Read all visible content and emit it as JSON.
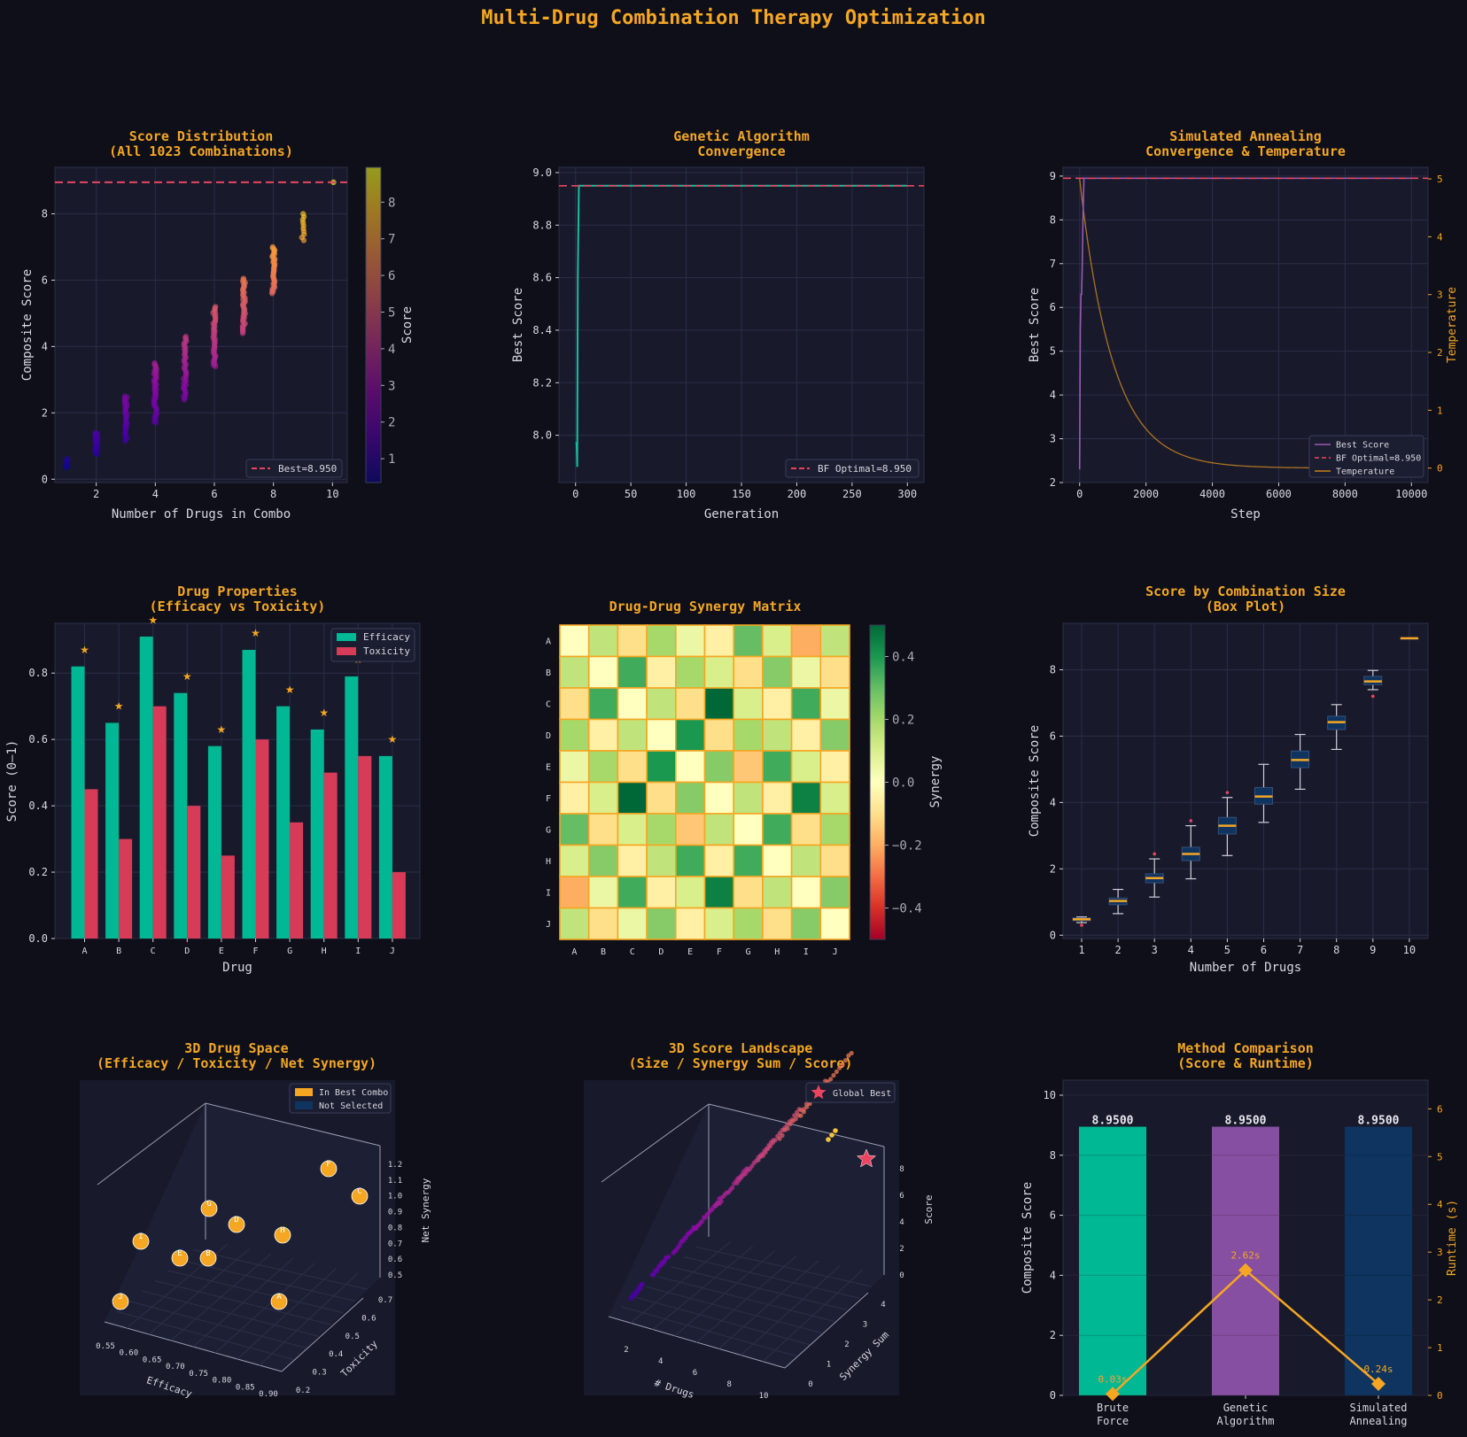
{
  "suptitle": "Multi-Drug Combination Therapy Optimization",
  "colors": {
    "background": "#0e0f18",
    "panel": "#181a2c",
    "accent": "#f5a623",
    "efficacy": "#00b894",
    "toxicity": "#d63b57",
    "ga": "#1abc9c",
    "sa": "#9b59b6",
    "navy": "#0f3460",
    "ref_line": "#e94560"
  },
  "chart_data": [
    {
      "id": "score_distribution",
      "type": "scatter",
      "title": "Score Distribution",
      "subtitle": "(All 1023 Combinations)",
      "xlabel": "Number of Drugs in Combo",
      "ylabel": "Composite Score",
      "xlim": [
        0.6,
        10.5
      ],
      "ylim": [
        -0.1,
        9.4
      ],
      "xticks": [
        2,
        4,
        6,
        8,
        10
      ],
      "yticks": [
        0,
        2,
        4,
        6,
        8
      ],
      "colorbar": {
        "label": "Score",
        "ticks": [
          1,
          2,
          3,
          4,
          5,
          6,
          7,
          8
        ],
        "range": [
          0.35,
          8.95
        ],
        "colormap": "plasma"
      },
      "reference_line": {
        "y": 8.95,
        "label": "Best=8.950"
      },
      "legend_position": "lower-right",
      "clusters": [
        {
          "x": 1,
          "count": 10,
          "min": 0.35,
          "max": 0.62
        },
        {
          "x": 2,
          "count": 45,
          "min": 0.75,
          "max": 1.4
        },
        {
          "x": 3,
          "count": 120,
          "min": 1.15,
          "max": 2.5
        },
        {
          "x": 4,
          "count": 210,
          "min": 1.7,
          "max": 3.5
        },
        {
          "x": 5,
          "count": 252,
          "min": 2.4,
          "max": 4.3
        },
        {
          "x": 6,
          "count": 210,
          "min": 3.4,
          "max": 5.2
        },
        {
          "x": 7,
          "count": 120,
          "min": 4.4,
          "max": 6.05
        },
        {
          "x": 8,
          "count": 45,
          "min": 5.6,
          "max": 7.0
        },
        {
          "x": 9,
          "count": 10,
          "min": 7.2,
          "max": 8.0
        },
        {
          "x": 10,
          "count": 1,
          "min": 8.95,
          "max": 8.95
        }
      ]
    },
    {
      "id": "ga_convergence",
      "type": "line",
      "title": "Genetic Algorithm",
      "subtitle": "Convergence",
      "xlabel": "Generation",
      "ylabel": "Best Score",
      "xlim": [
        -15,
        315
      ],
      "ylim": [
        7.82,
        9.02
      ],
      "xticks": [
        0,
        50,
        100,
        150,
        200,
        250,
        300
      ],
      "yticks": [
        8.0,
        8.2,
        8.4,
        8.6,
        8.8,
        9.0
      ],
      "reference_line": {
        "y": 8.95,
        "label": "BF Optimal=8.950"
      },
      "legend_position": "lower-right",
      "series": [
        {
          "x": [
            0,
            1,
            1.5,
            2,
            3,
            300
          ],
          "y": [
            7.97,
            7.97,
            7.88,
            8.6,
            8.95,
            8.95
          ]
        }
      ]
    },
    {
      "id": "sa_convergence",
      "type": "line",
      "title": "Simulated Annealing",
      "subtitle": "Convergence & Temperature",
      "xlabel": "Step",
      "ylabel": "Best Score",
      "y2label": "Temperature",
      "xlim": [
        -500,
        10500
      ],
      "ylim": [
        2.0,
        9.2
      ],
      "y2lim": [
        -0.25,
        5.2
      ],
      "xticks": [
        0,
        2000,
        4000,
        6000,
        8000,
        10000
      ],
      "yticks": [
        2,
        3,
        4,
        5,
        6,
        7,
        8,
        9
      ],
      "y2ticks": [
        0,
        1,
        2,
        3,
        4,
        5
      ],
      "legend_position": "lower-right",
      "series": [
        {
          "name": "Best Score",
          "x": [
            0,
            20,
            40,
            60,
            80,
            100,
            130,
            10000
          ],
          "y": [
            2.3,
            5.5,
            6.3,
            6.3,
            7.0,
            8.0,
            8.95,
            8.95
          ]
        },
        {
          "name": "BF Optimal=8.950",
          "y": 8.95
        },
        {
          "name": "Temperature",
          "start": 5.0,
          "end": 0.0,
          "decay_steps": 1000
        }
      ]
    },
    {
      "id": "drug_properties",
      "type": "bar",
      "title": "Drug Properties",
      "subtitle": "(Efficacy vs Toxicity)",
      "xlabel": "Drug",
      "ylabel": "Score (0–1)",
      "ylim": [
        0,
        0.95
      ],
      "yticks": [
        0.0,
        0.2,
        0.4,
        0.6,
        0.8
      ],
      "categories": [
        "A",
        "B",
        "C",
        "D",
        "E",
        "F",
        "G",
        "H",
        "I",
        "J"
      ],
      "legend_position": "top-right",
      "series": [
        {
          "name": "Efficacy",
          "values": [
            0.82,
            0.65,
            0.91,
            0.74,
            0.58,
            0.87,
            0.7,
            0.63,
            0.79,
            0.55
          ]
        },
        {
          "name": "Toxicity",
          "values": [
            0.45,
            0.3,
            0.7,
            0.4,
            0.25,
            0.6,
            0.35,
            0.5,
            0.55,
            0.2
          ]
        }
      ],
      "selected_markers": [
        0.87,
        0.7,
        0.96,
        0.79,
        0.63,
        0.92,
        0.75,
        0.68,
        0.84,
        0.6
      ]
    },
    {
      "id": "synergy_matrix",
      "type": "heatmap",
      "title": "Drug-Drug Synergy Matrix",
      "rows": [
        "A",
        "B",
        "C",
        "D",
        "E",
        "F",
        "G",
        "H",
        "I",
        "J"
      ],
      "cols": [
        "A",
        "B",
        "C",
        "D",
        "E",
        "F",
        "G",
        "H",
        "I",
        "J"
      ],
      "colorbar": {
        "label": "Synergy",
        "ticks": [
          0.4,
          0.2,
          0.0,
          -0.2,
          -0.4
        ],
        "range": [
          -0.5,
          0.5
        ],
        "colormap": "RdYlGn"
      },
      "values": [
        [
          0.0,
          0.15,
          -0.1,
          0.2,
          0.05,
          -0.05,
          0.3,
          0.1,
          -0.2,
          0.15
        ],
        [
          0.15,
          0.0,
          0.35,
          -0.05,
          0.2,
          0.1,
          -0.1,
          0.25,
          0.05,
          -0.1
        ],
        [
          -0.1,
          0.35,
          0.0,
          0.15,
          -0.1,
          0.5,
          0.1,
          -0.05,
          0.35,
          0.05
        ],
        [
          0.2,
          -0.05,
          0.15,
          0.0,
          0.4,
          -0.1,
          0.2,
          0.15,
          -0.05,
          0.25
        ],
        [
          0.05,
          0.2,
          -0.1,
          0.4,
          0.0,
          0.25,
          -0.15,
          0.35,
          0.1,
          -0.05
        ],
        [
          -0.05,
          0.1,
          0.5,
          -0.1,
          0.25,
          0.0,
          0.15,
          -0.05,
          0.45,
          0.1
        ],
        [
          0.3,
          -0.1,
          0.1,
          0.2,
          -0.15,
          0.15,
          0.0,
          0.35,
          -0.1,
          0.2
        ],
        [
          0.1,
          0.25,
          -0.05,
          0.15,
          0.35,
          -0.05,
          0.35,
          0.0,
          0.15,
          -0.1
        ],
        [
          -0.2,
          0.05,
          0.35,
          -0.05,
          0.1,
          0.45,
          -0.1,
          0.15,
          0.0,
          0.25
        ],
        [
          0.15,
          -0.1,
          0.05,
          0.25,
          -0.05,
          0.1,
          0.2,
          -0.1,
          0.25,
          0.0
        ]
      ]
    },
    {
      "id": "score_by_size",
      "type": "box",
      "title": "Score by Combination Size",
      "subtitle": "(Box Plot)",
      "xlabel": "Number of Drugs",
      "ylabel": "Composite Score",
      "ylim": [
        -0.1,
        9.4
      ],
      "yticks": [
        0,
        2,
        4,
        6,
        8
      ],
      "categories": [
        "1",
        "2",
        "3",
        "4",
        "5",
        "6",
        "7",
        "8",
        "9",
        "10"
      ],
      "boxes": [
        {
          "min": 0.38,
          "q1": 0.44,
          "med": 0.48,
          "q3": 0.52,
          "max": 0.55,
          "outliers": [
            0.3
          ]
        },
        {
          "min": 0.65,
          "q1": 0.92,
          "med": 1.03,
          "q3": 1.12,
          "max": 1.38,
          "outliers": []
        },
        {
          "min": 1.15,
          "q1": 1.58,
          "med": 1.72,
          "q3": 1.85,
          "max": 2.3,
          "outliers": [
            2.45
          ]
        },
        {
          "min": 1.7,
          "q1": 2.25,
          "med": 2.45,
          "q3": 2.65,
          "max": 3.3,
          "outliers": [
            3.45
          ]
        },
        {
          "min": 2.4,
          "q1": 3.05,
          "med": 3.3,
          "q3": 3.55,
          "max": 4.15,
          "outliers": [
            4.3
          ]
        },
        {
          "min": 3.4,
          "q1": 3.95,
          "med": 4.18,
          "q3": 4.45,
          "max": 5.15,
          "outliers": []
        },
        {
          "min": 4.4,
          "q1": 5.05,
          "med": 5.28,
          "q3": 5.55,
          "max": 6.05,
          "outliers": []
        },
        {
          "min": 5.6,
          "q1": 6.2,
          "med": 6.42,
          "q3": 6.6,
          "max": 6.95,
          "outliers": []
        },
        {
          "min": 7.4,
          "q1": 7.55,
          "med": 7.65,
          "q3": 7.8,
          "max": 7.98,
          "outliers": [
            7.2
          ]
        },
        {
          "min": 8.95,
          "q1": 8.95,
          "med": 8.95,
          "q3": 8.95,
          "max": 8.95,
          "outliers": []
        }
      ]
    },
    {
      "id": "drug_space_3d",
      "type": "scatter3d",
      "title": "3D Drug Space",
      "subtitle": "(Efficacy / Toxicity / Net Synergy)",
      "xlabel": "Efficacy",
      "ylabel": "Toxicity",
      "zlabel": "Net Synergy",
      "xticks": [
        "0.55",
        "0.60",
        "0.65",
        "0.70",
        "0.75",
        "0.80",
        "0.85",
        "0.90"
      ],
      "yticks": [
        "0.2",
        "0.3",
        "0.4",
        "0.5",
        "0.6",
        "0.7"
      ],
      "zticks": [
        "0.5",
        "0.6",
        "0.7",
        "0.8",
        "0.9",
        "1.0",
        "1.1",
        "1.2"
      ],
      "legend": [
        "In Best Combo",
        "Not Selected"
      ],
      "points": [
        "F",
        "C",
        "H",
        "D",
        "I",
        "E",
        "B",
        "G",
        "J",
        "A"
      ]
    },
    {
      "id": "score_landscape_3d",
      "type": "scatter3d",
      "title": "3D Score Landscape",
      "subtitle": "(Size / Synergy Sum / Score)",
      "xlabel": "# Drugs",
      "ylabel": "Synergy Sum",
      "zlabel": "Score",
      "xticks": [
        "2",
        "4",
        "6",
        "8",
        "10"
      ],
      "yticks": [
        "0",
        "1",
        "2",
        "3",
        "4"
      ],
      "zticks": [
        "0",
        "2",
        "4",
        "6",
        "8"
      ],
      "legend": [
        "Global Best"
      ]
    },
    {
      "id": "method_comparison",
      "type": "bar",
      "title": "Method Comparison",
      "subtitle": "(Score & Runtime)",
      "ylabel": "Composite Score",
      "y2label": "Runtime (s)",
      "ylim": [
        0,
        10.5
      ],
      "y2lim": [
        0,
        6.6
      ],
      "yticks": [
        0,
        2,
        4,
        6,
        8,
        10
      ],
      "y2ticks": [
        0,
        1,
        2,
        3,
        4,
        5,
        6
      ],
      "categories": [
        [
          "Brute",
          "Force"
        ],
        [
          "Genetic",
          "Algorithm"
        ],
        [
          "Simulated",
          "Annealing"
        ]
      ],
      "values": [
        8.95,
        8.95,
        8.95
      ],
      "value_labels": [
        "8.9500",
        "8.9500",
        "8.9500"
      ],
      "runtime": [
        0.03,
        2.62,
        0.24
      ],
      "runtime_labels": [
        "0.03s",
        "2.62s",
        "0.24s"
      ]
    }
  ]
}
